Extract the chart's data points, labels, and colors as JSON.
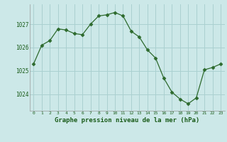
{
  "x": [
    0,
    1,
    2,
    3,
    4,
    5,
    6,
    7,
    8,
    9,
    10,
    11,
    12,
    13,
    14,
    15,
    16,
    17,
    18,
    19,
    20,
    21,
    22,
    23
  ],
  "y": [
    1025.3,
    1026.1,
    1026.3,
    1026.8,
    1026.75,
    1026.6,
    1026.55,
    1027.0,
    1027.35,
    1027.4,
    1027.5,
    1027.35,
    1026.7,
    1026.45,
    1025.9,
    1025.55,
    1024.7,
    1024.1,
    1023.8,
    1023.6,
    1023.85,
    1025.05,
    1025.15,
    1025.3
  ],
  "line_color": "#2d6a2d",
  "marker": "D",
  "marker_size": 2.5,
  "bg_color": "#cce8e8",
  "grid_color": "#aad0d0",
  "xlabel": "Graphe pression niveau de la mer (hPa)",
  "xlabel_color": "#1a5c1a",
  "tick_color": "#1a5c1a",
  "yticks": [
    1024,
    1025,
    1026,
    1027
  ],
  "ylim": [
    1023.3,
    1027.85
  ],
  "xlim": [
    -0.5,
    23.5
  ]
}
